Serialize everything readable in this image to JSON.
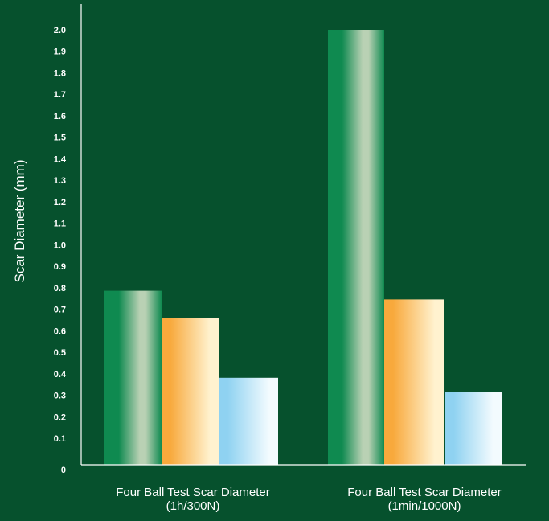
{
  "chart_data": {
    "type": "bar",
    "title": "",
    "xlabel": "",
    "ylabel": "Scar Diameter (mm)",
    "ylim": [
      0,
      2.0
    ],
    "y_ticks": [
      "0",
      "0.1",
      "0.2",
      "0.3",
      "0.4",
      "0.5",
      "0.6",
      "0.7",
      "0.8",
      "0.9",
      "1.0",
      "1.1",
      "1.2",
      "1.3",
      "1.4",
      "1.5",
      "1.6",
      "1.7",
      "1.8",
      "1.9",
      "2.0"
    ],
    "categories": [
      [
        "Four Ball Test Scar Diameter",
        "(1h/300N)"
      ],
      [
        "Four Ball Test Scar Diameter",
        "(1min/1000N)"
      ]
    ],
    "grid": false,
    "legend": "none",
    "series": [
      {
        "values": [
          0.8,
          2.0
        ],
        "color": "#0f8a50",
        "highlight": "#b9d1b4"
      },
      {
        "values": [
          0.675,
          0.76
        ],
        "color": "#f8a93c",
        "highlight": "#fff2cf"
      },
      {
        "values": [
          0.4,
          0.335
        ],
        "color": "#8fd2f1",
        "highlight": "#f3fbfe"
      }
    ]
  }
}
